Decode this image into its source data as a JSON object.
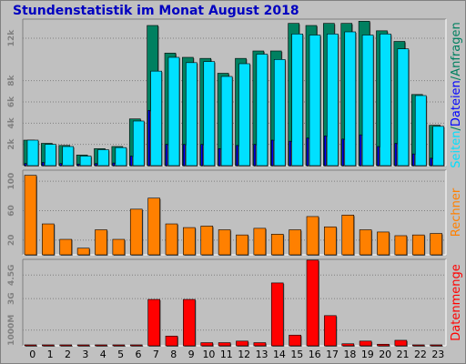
{
  "title": "Stundenstatistik im Monat August 2018",
  "colors": {
    "hits": "#008060",
    "files": "#00e0ff",
    "pages": "#0000ff",
    "visits": "#ff8000",
    "volume": "#ff0000",
    "panel": "#c0c0c0",
    "title": "#0000c0"
  },
  "chart_data": [
    {
      "type": "bar",
      "title": "Stundenstatistik im Monat August 2018",
      "categories": [
        "0",
        "1",
        "2",
        "3",
        "4",
        "5",
        "6",
        "7",
        "8",
        "9",
        "10",
        "11",
        "12",
        "13",
        "14",
        "15",
        "16",
        "17",
        "18",
        "19",
        "20",
        "21",
        "22",
        "23"
      ],
      "ylabel_parts": [
        {
          "text": "Seiten",
          "color": "#00e0ff"
        },
        {
          "text": "/",
          "color": "#008060"
        },
        {
          "text": "Dateien",
          "color": "#0000ff"
        },
        {
          "text": "/",
          "color": "#008060"
        },
        {
          "text": "Anfragen",
          "color": "#008060"
        }
      ],
      "yticks": [
        {
          "value": 2000,
          "label": "2k"
        },
        {
          "value": 4000,
          "label": "4k"
        },
        {
          "value": 6000,
          "label": "6k"
        },
        {
          "value": 8000,
          "label": "8k"
        },
        {
          "value": 12000,
          "label": "12k"
        }
      ],
      "ylim": [
        0,
        13800
      ],
      "series": [
        {
          "name": "Anfragen",
          "values": [
            2400,
            2100,
            1900,
            1000,
            1600,
            1800,
            4400,
            13200,
            10600,
            10200,
            10100,
            8700,
            10100,
            10800,
            10800,
            13400,
            13200,
            13400,
            13400,
            13600,
            12700,
            11700,
            6700,
            3800
          ]
        },
        {
          "name": "Dateien",
          "values": [
            2400,
            2000,
            1800,
            900,
            1500,
            1700,
            4200,
            8900,
            10200,
            9700,
            9800,
            8400,
            9600,
            10500,
            10000,
            12400,
            12300,
            12400,
            12600,
            12300,
            12400,
            11000,
            6600,
            3700
          ]
        },
        {
          "name": "Seiten",
          "values": [
            200,
            300,
            200,
            150,
            200,
            250,
            900,
            5200,
            2000,
            2000,
            2000,
            1600,
            1900,
            2000,
            2400,
            2300,
            2600,
            2800,
            2500,
            2900,
            1800,
            2100,
            1100,
            700
          ]
        }
      ]
    },
    {
      "type": "bar",
      "categories": [
        "0",
        "1",
        "2",
        "3",
        "4",
        "5",
        "6",
        "7",
        "8",
        "9",
        "10",
        "11",
        "12",
        "13",
        "14",
        "15",
        "16",
        "17",
        "18",
        "19",
        "20",
        "21",
        "22",
        "23"
      ],
      "ylabel": "Rechner",
      "yticks": [
        {
          "value": 20,
          "label": "20"
        },
        {
          "value": 60,
          "label": "60"
        },
        {
          "value": 100,
          "label": "100"
        }
      ],
      "ylim": [
        0,
        115
      ],
      "series": [
        {
          "name": "Rechner",
          "values": [
            108,
            42,
            21,
            9,
            34,
            21,
            62,
            77,
            42,
            37,
            39,
            34,
            27,
            36,
            28,
            34,
            52,
            38,
            54,
            34,
            31,
            26,
            27,
            29
          ]
        }
      ]
    },
    {
      "type": "bar",
      "categories": [
        "0",
        "1",
        "2",
        "3",
        "4",
        "5",
        "6",
        "7",
        "8",
        "9",
        "10",
        "11",
        "12",
        "13",
        "14",
        "15",
        "16",
        "17",
        "18",
        "19",
        "20",
        "21",
        "22",
        "23"
      ],
      "ylabel": "Datenmenge",
      "yticks": [
        {
          "value": 1000,
          "label": "1000M"
        },
        {
          "value": 3000,
          "label": "3G"
        },
        {
          "value": 4500,
          "label": "4.5G"
        }
      ],
      "ylim": [
        0,
        5500
      ],
      "series": [
        {
          "name": "Datenmenge",
          "values": [
            60,
            60,
            60,
            60,
            60,
            60,
            60,
            2950,
            620,
            2950,
            200,
            200,
            300,
            200,
            4000,
            680,
            5450,
            1920,
            130,
            300,
            100,
            350,
            60,
            60
          ]
        }
      ]
    }
  ]
}
